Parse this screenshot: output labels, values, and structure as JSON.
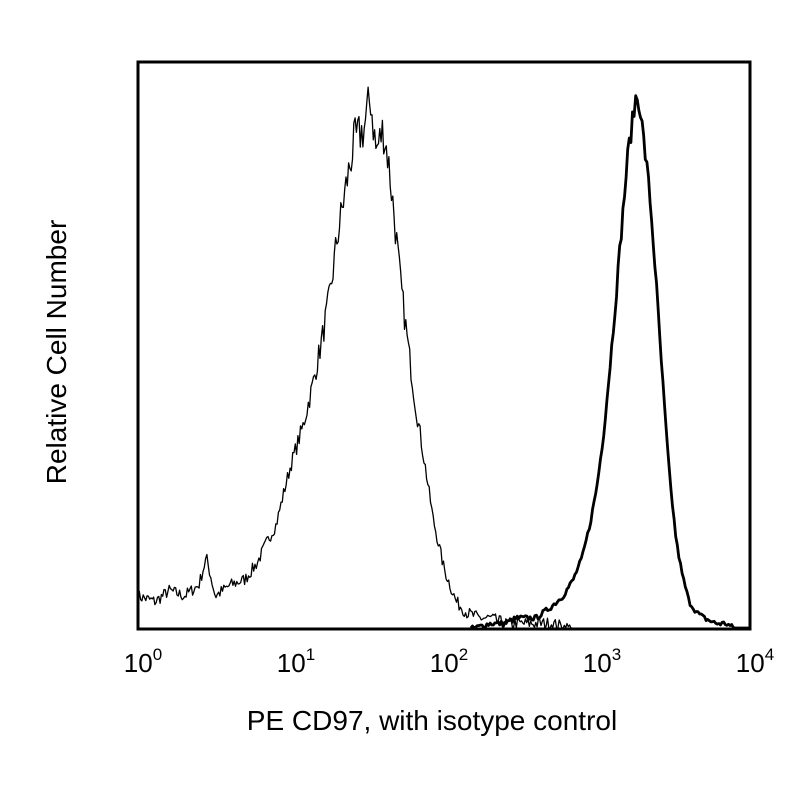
{
  "chart_data": {
    "type": "area",
    "xlabel": "PE CD97, with isotype control",
    "ylabel": "Relative Cell Number",
    "x_scale": "log",
    "xlim": [
      1,
      10000
    ],
    "ylim": [
      0,
      1
    ],
    "x_ticks": [
      {
        "value": 1,
        "base": "10",
        "exp": "0"
      },
      {
        "value": 10,
        "base": "10",
        "exp": "1"
      },
      {
        "value": 100,
        "base": "10",
        "exp": "2"
      },
      {
        "value": 1000,
        "base": "10",
        "exp": "3"
      },
      {
        "value": 10000,
        "base": "10",
        "exp": "4"
      }
    ],
    "grid": false,
    "legend": "none",
    "series": [
      {
        "style": "thin",
        "color": "#000000",
        "x": [
          1.0,
          1.3,
          1.6,
          2.0,
          2.5,
          2.8,
          3.2,
          4.0,
          5.0,
          6.0,
          7.0,
          8.0,
          9.0,
          10.0,
          12.0,
          14.0,
          16.0,
          18.0,
          20.0,
          23.0,
          26.0,
          30.0,
          33.0,
          36.0,
          40.0,
          43.0,
          47.0,
          52.0,
          58.0,
          65.0,
          75.0,
          85.0,
          100.0,
          120.0,
          140.0,
          170.0,
          200.0,
          250.0,
          300.0,
          400.0,
          500.0,
          700.0
        ],
        "values": [
          0.06,
          0.05,
          0.07,
          0.06,
          0.08,
          0.13,
          0.06,
          0.08,
          0.09,
          0.12,
          0.16,
          0.19,
          0.25,
          0.3,
          0.37,
          0.45,
          0.53,
          0.61,
          0.71,
          0.81,
          0.89,
          0.91,
          0.97,
          0.87,
          0.91,
          0.86,
          0.76,
          0.63,
          0.52,
          0.41,
          0.3,
          0.2,
          0.11,
          0.05,
          0.03,
          0.02,
          0.02,
          0.01,
          0.01,
          0.01,
          0.01,
          0.0
        ]
      },
      {
        "style": "thick",
        "color": "#000000",
        "x": [
          150.0,
          200.0,
          250.0,
          300.0,
          350.0,
          400.0,
          500.0,
          600.0,
          700.0,
          800.0,
          900.0,
          1000.0,
          1100.0,
          1200.0,
          1300.0,
          1400.0,
          1500.0,
          1600.0,
          1700.0,
          1800.0,
          1900.0,
          2000.0,
          2200.0,
          2400.0,
          2600.0,
          2800.0,
          3000.0,
          3300.0,
          3600.0,
          4000.0,
          4500.0,
          5000.0,
          6000.0,
          7000.0,
          8000.0,
          10000.0
        ],
        "values": [
          0.0,
          0.01,
          0.01,
          0.02,
          0.02,
          0.02,
          0.04,
          0.06,
          0.09,
          0.13,
          0.19,
          0.26,
          0.35,
          0.46,
          0.57,
          0.68,
          0.78,
          0.87,
          0.92,
          0.97,
          0.96,
          0.9,
          0.8,
          0.66,
          0.51,
          0.38,
          0.27,
          0.16,
          0.1,
          0.05,
          0.03,
          0.02,
          0.01,
          0.01,
          0.0,
          0.0
        ]
      }
    ]
  }
}
